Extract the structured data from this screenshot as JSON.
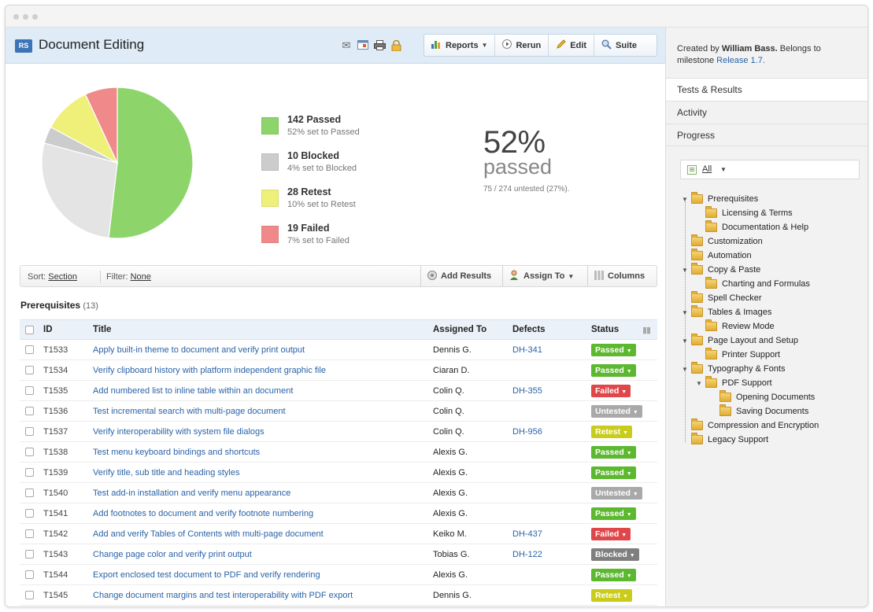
{
  "header": {
    "badge": "RS",
    "title": "Document Editing",
    "icons": [
      "envelope-icon",
      "calendar-icon",
      "printer-icon",
      "lock-icon"
    ],
    "buttons": [
      {
        "label": "Reports",
        "icon": "bar-chart-icon",
        "dropdown": true
      },
      {
        "label": "Rerun",
        "icon": "play-icon"
      },
      {
        "label": "Edit",
        "icon": "pencil-icon"
      },
      {
        "label": "Suite",
        "icon": "magnifier-icon"
      }
    ]
  },
  "chart_data": {
    "type": "pie",
    "slices": [
      {
        "label": "Passed",
        "value": 142,
        "percent": 52,
        "color": "#8dd56b"
      },
      {
        "label": "Blocked",
        "value": 10,
        "percent": 4,
        "color": "#cccccc"
      },
      {
        "label": "Retest",
        "value": 28,
        "percent": 10,
        "color": "#eef07a"
      },
      {
        "label": "Failed",
        "value": 19,
        "percent": 7,
        "color": "#f08a8a"
      },
      {
        "label": "Untested",
        "value": 75,
        "percent": 27,
        "color": "#e4e4e4"
      }
    ]
  },
  "legend": [
    {
      "title": "142 Passed",
      "sub": "52% set to Passed",
      "color": "#8dd56b"
    },
    {
      "title": "10 Blocked",
      "sub": "4% set to Blocked",
      "color": "#cccccc"
    },
    {
      "title": "28 Retest",
      "sub": "10% set to Retest",
      "color": "#eef07a"
    },
    {
      "title": "19 Failed",
      "sub": "7% set to Failed",
      "color": "#f08a8a"
    }
  ],
  "summary": {
    "percent": "52%",
    "label": "passed",
    "untested": "75 / 274 untested (27%)."
  },
  "sortbar": {
    "sort_label": "Sort:",
    "sort_value": "Section",
    "filter_label": "Filter:",
    "filter_value": "None",
    "add_results": "Add Results",
    "assign_to": "Assign To",
    "columns": "Columns"
  },
  "section": {
    "title": "Prerequisites",
    "count": "(13)"
  },
  "table": {
    "headers": {
      "id": "ID",
      "title": "Title",
      "assigned": "Assigned To",
      "defects": "Defects",
      "status": "Status"
    },
    "rows": [
      {
        "id": "T1533",
        "title": "Apply built-in theme to document and verify print output",
        "assigned": "Dennis G.",
        "defect": "DH-341",
        "status": "Passed"
      },
      {
        "id": "T1534",
        "title": "Verify clipboard history with platform independent graphic file",
        "assigned": "Ciaran D.",
        "defect": "",
        "status": "Passed"
      },
      {
        "id": "T1535",
        "title": "Add numbered list to inline table within an document",
        "assigned": "Colin Q.",
        "defect": "DH-355",
        "status": "Failed"
      },
      {
        "id": "T1536",
        "title": "Test incremental search with multi-page document",
        "assigned": "Colin Q.",
        "defect": "",
        "status": "Untested"
      },
      {
        "id": "T1537",
        "title": "Verify interoperability with system file dialogs",
        "assigned": "Colin Q.",
        "defect": "DH-956",
        "status": "Retest"
      },
      {
        "id": "T1538",
        "title": "Test menu keyboard bindings and shortcuts",
        "assigned": "Alexis G.",
        "defect": "",
        "status": "Passed"
      },
      {
        "id": "T1539",
        "title": "Verify title, sub title and heading styles",
        "assigned": "Alexis G.",
        "defect": "",
        "status": "Passed"
      },
      {
        "id": "T1540",
        "title": "Test add-in installation and verify menu appearance",
        "assigned": "Alexis G.",
        "defect": "",
        "status": "Untested"
      },
      {
        "id": "T1541",
        "title": "Add footnotes to document and verify footnote numbering",
        "assigned": "Alexis G.",
        "defect": "",
        "status": "Passed"
      },
      {
        "id": "T1542",
        "title": "Add and verify Tables of Contents with multi-page document",
        "assigned": "Keiko M.",
        "defect": "DH-437",
        "status": "Failed"
      },
      {
        "id": "T1543",
        "title": "Change page color and verify print output",
        "assigned": "Tobias G.",
        "defect": "DH-122",
        "status": "Blocked"
      },
      {
        "id": "T1544",
        "title": "Export enclosed test document to PDF and verify rendering",
        "assigned": "Alexis G.",
        "defect": "",
        "status": "Passed"
      },
      {
        "id": "T1545",
        "title": "Change document margins and test interoperability with PDF export",
        "assigned": "Dennis G.",
        "defect": "",
        "status": "Retest"
      }
    ]
  },
  "status_colors": {
    "Passed": "#5cb82f",
    "Failed": "#e0474a",
    "Untested": "#a9a9a9",
    "Retest": "#c9cc1b",
    "Blocked": "#7f7f7f"
  },
  "sidebar": {
    "created_prefix": "Created by",
    "created_by": "William Bass.",
    "belongs": "Belongs to milestone",
    "milestone": "Release 1.7.",
    "tabs": [
      "Tests & Results",
      "Activity",
      "Progress"
    ],
    "filter": "All",
    "tree": [
      {
        "label": "Prerequisites",
        "depth": 0,
        "expanded": true
      },
      {
        "label": "Licensing & Terms",
        "depth": 1
      },
      {
        "label": "Documentation & Help",
        "depth": 1
      },
      {
        "label": "Customization",
        "depth": 0
      },
      {
        "label": "Automation",
        "depth": 0
      },
      {
        "label": "Copy & Paste",
        "depth": 0,
        "expanded": true
      },
      {
        "label": "Charting and Formulas",
        "depth": 1
      },
      {
        "label": "Spell Checker",
        "depth": 0
      },
      {
        "label": "Tables & Images",
        "depth": 0,
        "expanded": true
      },
      {
        "label": "Review Mode",
        "depth": 1
      },
      {
        "label": "Page Layout and Setup",
        "depth": 0,
        "expanded": true
      },
      {
        "label": "Printer Support",
        "depth": 1
      },
      {
        "label": "Typography & Fonts",
        "depth": 0,
        "expanded": true
      },
      {
        "label": "PDF Support",
        "depth": 1,
        "expanded": true
      },
      {
        "label": "Opening Documents",
        "depth": 2
      },
      {
        "label": "Saving Documents",
        "depth": 2
      },
      {
        "label": "Compression and Encryption",
        "depth": 0
      },
      {
        "label": "Legacy Support",
        "depth": 0
      }
    ]
  }
}
